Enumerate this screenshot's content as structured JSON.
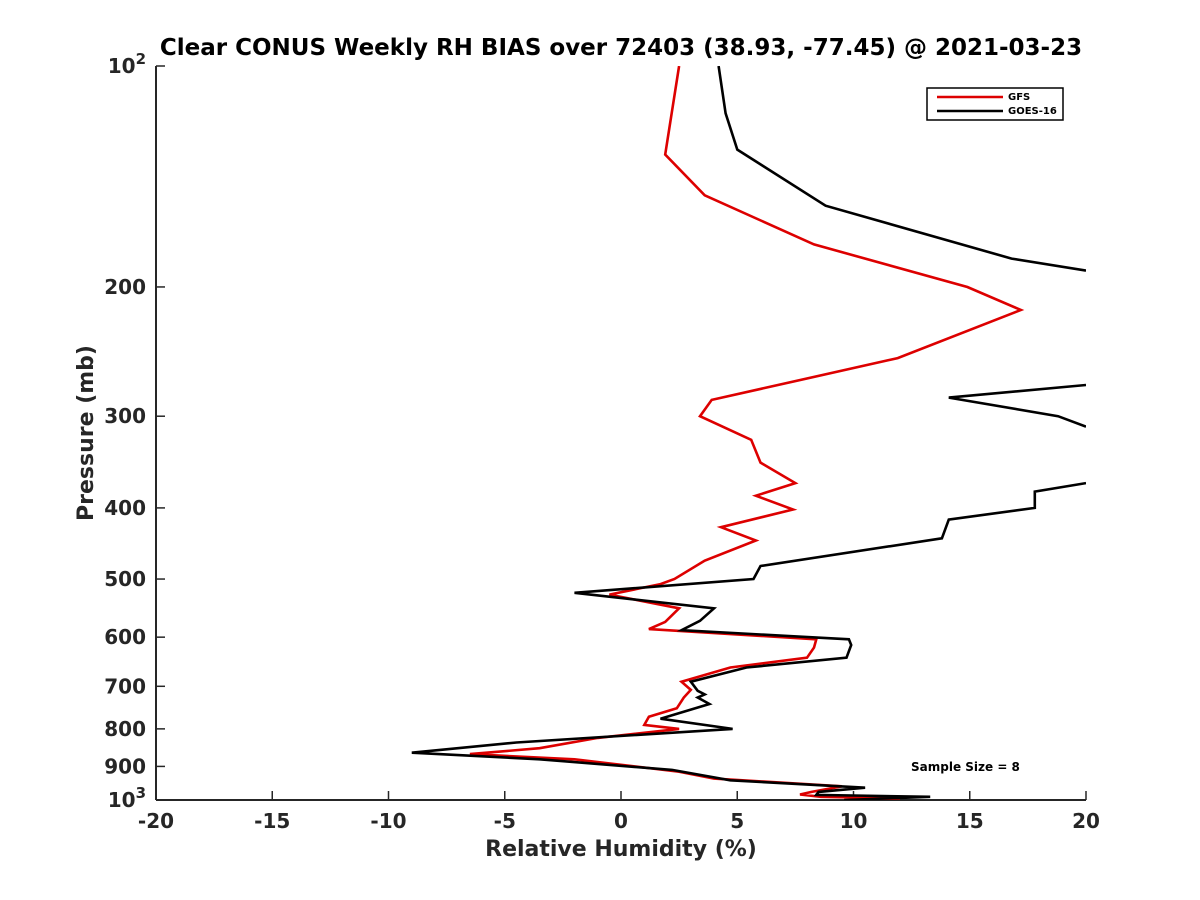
{
  "chart_data": {
    "type": "line",
    "title": "Clear CONUS Weekly RH BIAS over 72403 (38.93, -77.45) @ 2021-03-23",
    "xlabel": "Relative Humidity (%)",
    "ylabel": "Pressure (mb)",
    "xlim": [
      -20,
      20
    ],
    "ylim": [
      100,
      1000
    ],
    "y_scale": "log",
    "y_reversed": true,
    "grid": false,
    "legend_position": "top-right",
    "x_ticks": [
      -20,
      -15,
      -10,
      -5,
      0,
      5,
      10,
      15,
      20
    ],
    "x_tick_labels": [
      "-20",
      "-15",
      "-10",
      "-5",
      "0",
      "5",
      "10",
      "15",
      "20"
    ],
    "y_ticks": [
      100,
      200,
      300,
      400,
      500,
      600,
      700,
      800,
      900,
      1000
    ],
    "y_tick_labels": [
      {
        "base": "10",
        "exp": "2"
      },
      {
        "base": "200",
        "exp": ""
      },
      {
        "base": "300",
        "exp": ""
      },
      {
        "base": "400",
        "exp": ""
      },
      {
        "base": "500",
        "exp": ""
      },
      {
        "base": "600",
        "exp": ""
      },
      {
        "base": "700",
        "exp": ""
      },
      {
        "base": "800",
        "exp": ""
      },
      {
        "base": "900",
        "exp": ""
      },
      {
        "base": "10",
        "exp": "3"
      }
    ],
    "annotation": "Sample Size = 8",
    "series": [
      {
        "name": "GFS",
        "color": "#dd0000",
        "points": [
          [
            2.5,
            100
          ],
          [
            2.2,
            115
          ],
          [
            1.9,
            132
          ],
          [
            3.6,
            150
          ],
          [
            8.3,
            175
          ],
          [
            14.9,
            200
          ],
          [
            17.2,
            215
          ],
          [
            11.9,
            250
          ],
          [
            3.9,
            285
          ],
          [
            3.4,
            300
          ],
          [
            5.6,
            323
          ],
          [
            6.0,
            347
          ],
          [
            7.5,
            370
          ],
          [
            5.8,
            385
          ],
          [
            7.4,
            402
          ],
          [
            4.3,
            425
          ],
          [
            5.8,
            443
          ],
          [
            3.6,
            472
          ],
          [
            2.3,
            500
          ],
          [
            1.7,
            508
          ],
          [
            -0.5,
            525
          ],
          [
            2.5,
            548
          ],
          [
            1.9,
            572
          ],
          [
            1.2,
            585
          ],
          [
            8.4,
            604
          ],
          [
            8.3,
            620
          ],
          [
            8.0,
            640
          ],
          [
            4.7,
            660
          ],
          [
            2.6,
            690
          ],
          [
            3.0,
            708
          ],
          [
            2.7,
            725
          ],
          [
            2.4,
            750
          ],
          [
            1.2,
            770
          ],
          [
            1.0,
            790
          ],
          [
            2.5,
            800
          ],
          [
            -1.0,
            823
          ],
          [
            -3.5,
            850
          ],
          [
            -6.5,
            866
          ],
          [
            -2.0,
            880
          ],
          [
            2.5,
            915
          ],
          [
            4.0,
            935
          ],
          [
            9.5,
            958
          ],
          [
            8.2,
            975
          ],
          [
            7.7,
            983
          ],
          [
            8.6,
            990
          ],
          [
            12.0,
            995
          ],
          [
            10.6,
            1000
          ]
        ]
      },
      {
        "name": "GOES-16",
        "color": "#000000",
        "points": [
          [
            4.2,
            100
          ],
          [
            4.5,
            116
          ],
          [
            5.0,
            130
          ],
          [
            8.8,
            155
          ],
          [
            16.8,
            183
          ],
          [
            20.0,
            190
          ],
          [
            null,
            null
          ],
          [
            20.0,
            272
          ],
          [
            14.1,
            283
          ],
          [
            18.8,
            300
          ],
          [
            20.0,
            310
          ],
          [
            null,
            null
          ],
          [
            20.0,
            370
          ],
          [
            17.8,
            380
          ],
          [
            17.8,
            400
          ],
          [
            14.1,
            415
          ],
          [
            13.8,
            440
          ],
          [
            6.0,
            480
          ],
          [
            5.7,
            500
          ],
          [
            -2.0,
            522
          ],
          [
            4.0,
            548
          ],
          [
            3.4,
            570
          ],
          [
            2.6,
            587
          ],
          [
            9.8,
            604
          ],
          [
            9.9,
            615
          ],
          [
            9.7,
            640
          ],
          [
            5.4,
            660
          ],
          [
            3.0,
            690
          ],
          [
            3.3,
            710
          ],
          [
            3.6,
            718
          ],
          [
            3.3,
            725
          ],
          [
            3.8,
            740
          ],
          [
            1.7,
            775
          ],
          [
            4.8,
            800
          ],
          [
            -4.5,
            835
          ],
          [
            -9.0,
            862
          ],
          [
            -3.5,
            880
          ],
          [
            2.2,
            910
          ],
          [
            4.7,
            940
          ],
          [
            10.5,
            962
          ],
          [
            8.5,
            975
          ],
          [
            8.4,
            984
          ],
          [
            13.3,
            990
          ],
          [
            9.6,
            1000
          ]
        ]
      }
    ]
  }
}
